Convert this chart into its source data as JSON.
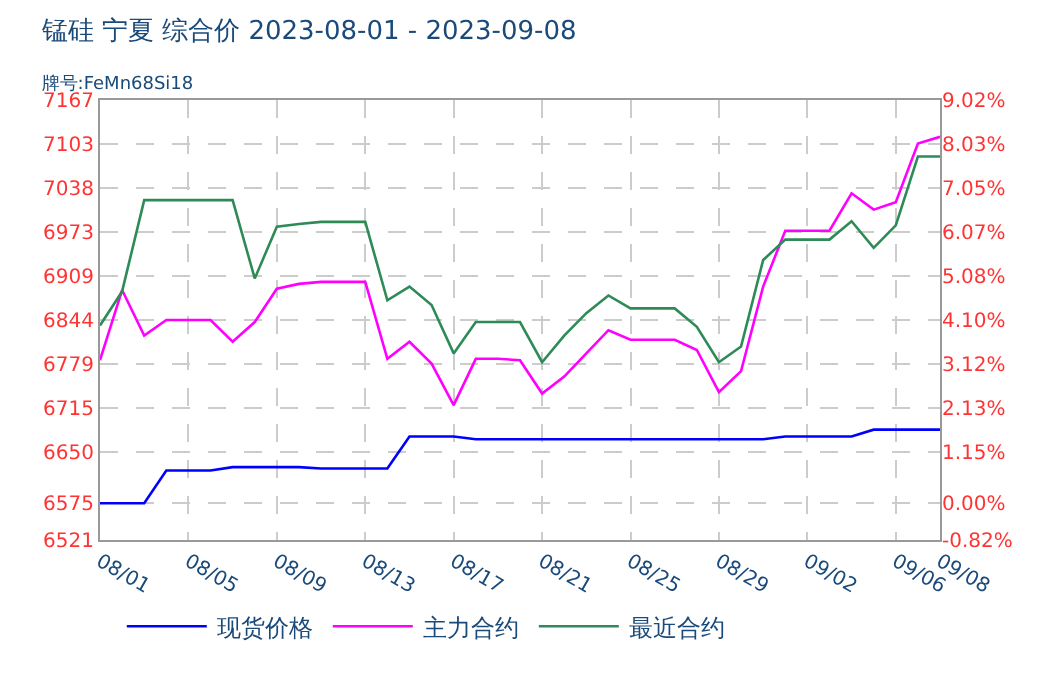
{
  "chart_data": {
    "type": "line",
    "title": "锰硅 宁夏 综合价 2023-08-01 - 2023-09-08",
    "subtitle": "牌号:FeMn68Si18",
    "x": [
      "2023-08-01",
      "2023-08-02",
      "2023-08-03",
      "2023-08-04",
      "2023-08-05",
      "2023-08-06",
      "2023-08-07",
      "2023-08-08",
      "2023-08-09",
      "2023-08-10",
      "2023-08-11",
      "2023-08-12",
      "2023-08-13",
      "2023-08-14",
      "2023-08-15",
      "2023-08-16",
      "2023-08-17",
      "2023-08-18",
      "2023-08-19",
      "2023-08-20",
      "2023-08-21",
      "2023-08-22",
      "2023-08-23",
      "2023-08-24",
      "2023-08-25",
      "2023-08-26",
      "2023-08-27",
      "2023-08-28",
      "2023-08-29",
      "2023-08-30",
      "2023-08-31",
      "2023-09-01",
      "2023-09-02",
      "2023-09-03",
      "2023-09-04",
      "2023-09-05",
      "2023-09-06",
      "2023-09-07",
      "2023-09-08"
    ],
    "series": [
      {
        "name": "现货价格",
        "color": "#0000ff",
        "values": [
          6575,
          6575,
          6575,
          6623,
          6623,
          6623,
          6628,
          6628,
          6628,
          6628,
          6626,
          6626,
          6626,
          6626,
          6673,
          6673,
          6673,
          6669,
          6669,
          6669,
          6669,
          6669,
          6669,
          6669,
          6669,
          6669,
          6669,
          6669,
          6669,
          6669,
          6669,
          6673,
          6673,
          6673,
          6673,
          6683,
          6683,
          6683,
          6683
        ]
      },
      {
        "name": "主力合约",
        "color": "#ff00ff",
        "values": [
          6785,
          6888,
          6821,
          6844,
          6844,
          6844,
          6812,
          6841,
          6890,
          6897,
          6900,
          6900,
          6900,
          6787,
          6812,
          6780,
          6719,
          6787,
          6787,
          6785,
          6736,
          6761,
          6795,
          6829,
          6815,
          6815,
          6815,
          6800,
          6738,
          6769,
          6893,
          6975,
          6975,
          6975,
          7030,
          7006,
          7017,
          7103,
          7113
        ]
      },
      {
        "name": "最近合约",
        "color": "#2e8b57",
        "values": [
          6836,
          6886,
          7020,
          7020,
          7020,
          7020,
          7020,
          6905,
          6981,
          6985,
          6988,
          6988,
          6988,
          6873,
          6893,
          6866,
          6795,
          6841,
          6841,
          6841,
          6782,
          6821,
          6854,
          6880,
          6861,
          6861,
          6861,
          6834,
          6782,
          6805,
          6932,
          6962,
          6962,
          6962,
          6989,
          6950,
          6983,
          7084,
          7084
        ]
      }
    ],
    "xlim": [
      "2023-08-01",
      "2023-09-08"
    ],
    "xticks": [
      {
        "value": "2023-08-01",
        "label": "08/01"
      },
      {
        "value": "2023-08-05",
        "label": "08/05"
      },
      {
        "value": "2023-08-09",
        "label": "08/09"
      },
      {
        "value": "2023-08-13",
        "label": "08/13"
      },
      {
        "value": "2023-08-17",
        "label": "08/17"
      },
      {
        "value": "2023-08-21",
        "label": "08/21"
      },
      {
        "value": "2023-08-25",
        "label": "08/25"
      },
      {
        "value": "2023-08-29",
        "label": "08/29"
      },
      {
        "value": "2023-09-02",
        "label": "09/02"
      },
      {
        "value": "2023-09-06",
        "label": "09/06"
      },
      {
        "value": "2023-09-08",
        "label": "09/08"
      }
    ],
    "ylim": [
      6521,
      7167
    ],
    "yticks": [
      6521,
      6575,
      6650,
      6715,
      6779,
      6844,
      6909,
      6973,
      7038,
      7103,
      7167
    ],
    "y2lim": [
      -0.82,
      9.02
    ],
    "y2ticks": [
      {
        "value": -0.82,
        "label": "-0.82%"
      },
      {
        "value": 0,
        "label": "0.00%"
      },
      {
        "value": 1.15,
        "label": "1.15%"
      },
      {
        "value": 2.13,
        "label": "2.13%"
      },
      {
        "value": 3.12,
        "label": "3.12%"
      },
      {
        "value": 4.1,
        "label": "4.10%"
      },
      {
        "value": 5.08,
        "label": "5.08%"
      },
      {
        "value": 6.07,
        "label": "6.07%"
      },
      {
        "value": 7.05,
        "label": "7.05%"
      },
      {
        "value": 8.03,
        "label": "8.03%"
      },
      {
        "value": 9.02,
        "label": "9.02%"
      }
    ],
    "grid": true,
    "legend": "bottom",
    "marker": "none",
    "line_style": "solid"
  }
}
